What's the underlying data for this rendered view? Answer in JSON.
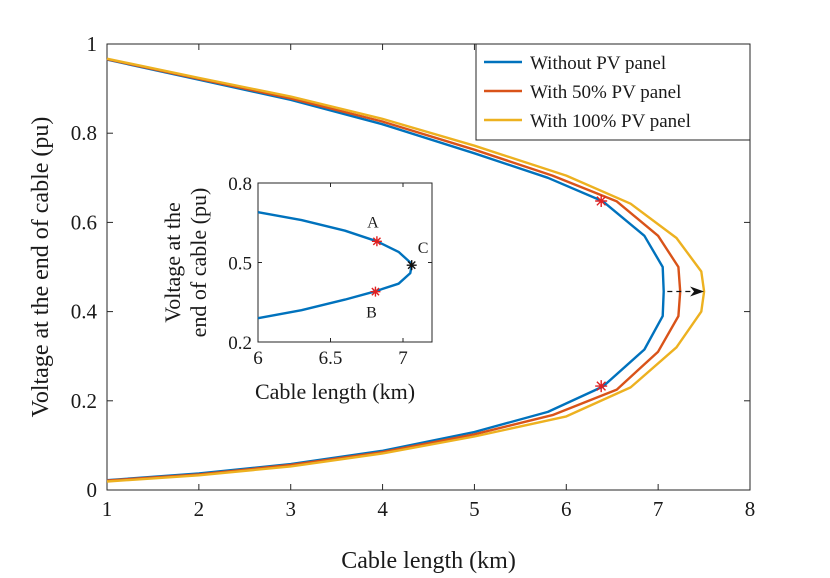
{
  "chart_data": [
    {
      "type": "line",
      "role": "main",
      "xlabel": "Cable length (km)",
      "ylabel": "Voltage at the end of cable (pu)",
      "xlim": [
        1,
        8
      ],
      "ylim": [
        0,
        1
      ],
      "xticks": [
        "1",
        "2",
        "3",
        "4",
        "5",
        "6",
        "7",
        "8"
      ],
      "yticks": [
        "0",
        "0.2",
        "0.4",
        "0.6",
        "0.8",
        "1"
      ],
      "grid": false,
      "legend_position": "top-right",
      "series": [
        {
          "name": "Without PV panel",
          "color": "#0072BD",
          "x": [
            1.0,
            2.0,
            3.0,
            4.0,
            5.0,
            5.8,
            6.4,
            6.85,
            7.05,
            7.06,
            7.05,
            6.85,
            6.4,
            5.8,
            5.0,
            4.0,
            3.0,
            2.0,
            1.0
          ],
          "y": [
            0.965,
            0.92,
            0.875,
            0.82,
            0.755,
            0.7,
            0.647,
            0.57,
            0.5,
            0.445,
            0.39,
            0.315,
            0.232,
            0.175,
            0.13,
            0.088,
            0.058,
            0.037,
            0.022
          ]
        },
        {
          "name": "With 50% PV panel",
          "color": "#D95319",
          "x": [
            1.0,
            2.0,
            3.0,
            4.0,
            5.0,
            5.85,
            6.55,
            7.0,
            7.22,
            7.24,
            7.22,
            7.0,
            6.55,
            5.85,
            5.0,
            4.0,
            3.0,
            2.0,
            1.0
          ],
          "y": [
            0.966,
            0.922,
            0.878,
            0.826,
            0.763,
            0.705,
            0.647,
            0.57,
            0.5,
            0.445,
            0.39,
            0.31,
            0.225,
            0.168,
            0.125,
            0.085,
            0.056,
            0.035,
            0.021
          ]
        },
        {
          "name": "With 100% PV panel",
          "color": "#EDB120",
          "x": [
            1.0,
            2.0,
            3.0,
            4.0,
            5.0,
            6.0,
            6.7,
            7.2,
            7.47,
            7.5,
            7.47,
            7.2,
            6.7,
            6.0,
            5.0,
            4.0,
            3.0,
            2.0,
            1.0
          ],
          "y": [
            0.967,
            0.924,
            0.882,
            0.832,
            0.772,
            0.705,
            0.642,
            0.565,
            0.49,
            0.445,
            0.4,
            0.32,
            0.23,
            0.165,
            0.12,
            0.082,
            0.053,
            0.033,
            0.019
          ]
        }
      ],
      "markers": [
        {
          "x": 6.38,
          "y": 0.648,
          "color": "#e02020"
        },
        {
          "x": 6.38,
          "y": 0.233,
          "color": "#e02020"
        }
      ],
      "arrow": {
        "from": [
          7.1,
          0.445
        ],
        "to": [
          7.5,
          0.445
        ]
      }
    },
    {
      "type": "line",
      "role": "inset",
      "xlabel": "Cable length (km)",
      "ylabel_line1": "Voltage at the",
      "ylabel_line2": "end of cable (pu)",
      "xlim": [
        6,
        7.2
      ],
      "ylim": [
        0.2,
        0.8
      ],
      "xticks": [
        "6",
        "6.5",
        "7"
      ],
      "yticks": [
        "0.2",
        "0.5",
        "0.8"
      ],
      "series": [
        {
          "name": "Without PV panel",
          "color": "#0072BD",
          "x": [
            6.0,
            6.3,
            6.6,
            6.82,
            6.97,
            7.05,
            7.06,
            7.05,
            6.97,
            6.8,
            6.6,
            6.3,
            6.0
          ],
          "y": [
            0.69,
            0.66,
            0.62,
            0.58,
            0.54,
            0.5,
            0.49,
            0.46,
            0.42,
            0.39,
            0.36,
            0.32,
            0.29
          ]
        }
      ],
      "points": [
        {
          "label": "A",
          "x": 6.82,
          "y": 0.58,
          "color": "#e02020"
        },
        {
          "label": "B",
          "x": 6.81,
          "y": 0.39,
          "color": "#e02020"
        },
        {
          "label": "C",
          "x": 7.06,
          "y": 0.49,
          "color": "#111111"
        }
      ]
    }
  ]
}
